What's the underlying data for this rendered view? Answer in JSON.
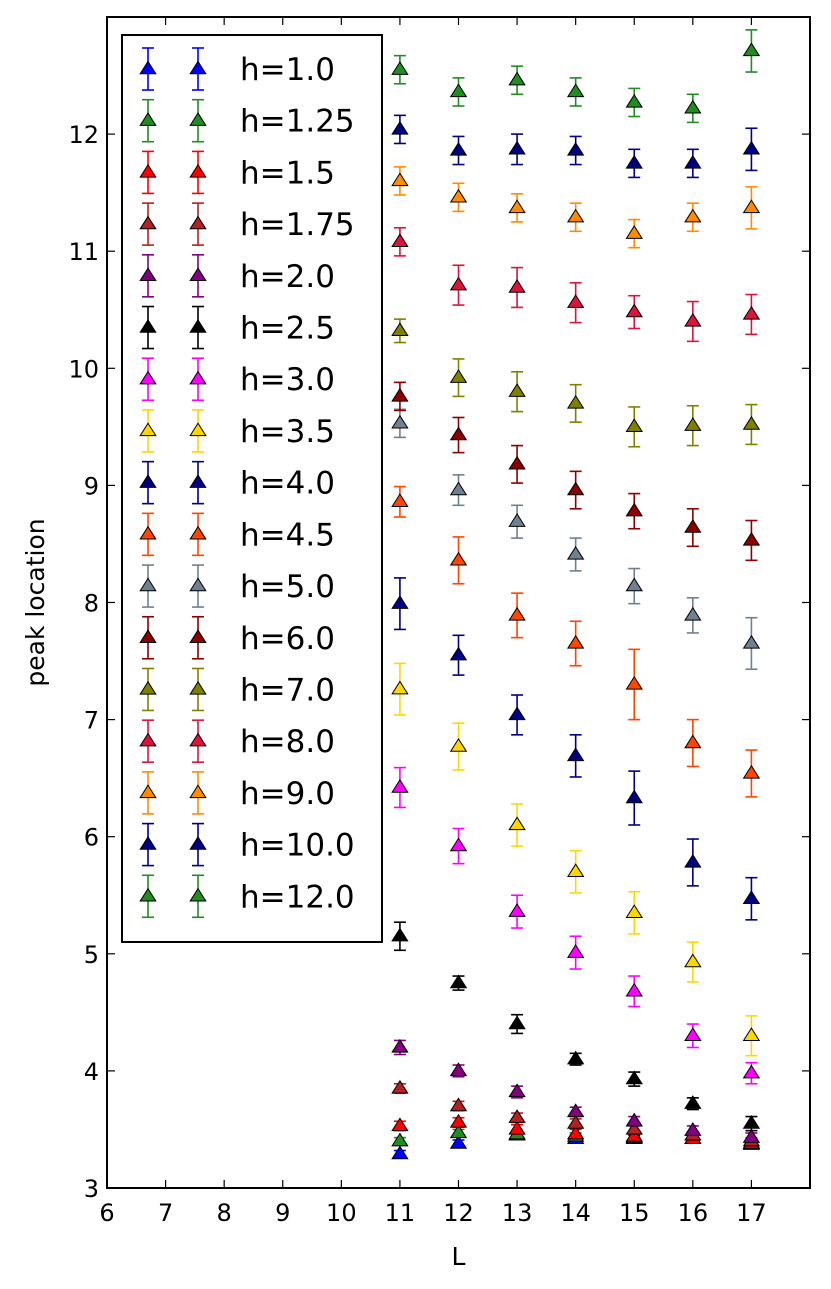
{
  "chart_data": {
    "type": "scatter",
    "xlabel": "L",
    "ylabel": "peak location",
    "xlim": [
      6,
      18
    ],
    "ylim": [
      3,
      13
    ],
    "xticks": [
      6,
      7,
      8,
      9,
      10,
      11,
      12,
      13,
      14,
      15,
      16,
      17
    ],
    "yticks": [
      3,
      4,
      5,
      6,
      7,
      8,
      9,
      10,
      11,
      12
    ],
    "marker": "triangle-up",
    "legend_position": "upper-left",
    "x": [
      11,
      12,
      13,
      14,
      15,
      16,
      17
    ],
    "series": [
      {
        "name": "h=1.0",
        "color": "#0000ff",
        "values": [
          3.29,
          3.38,
          3.45,
          3.42,
          3.42,
          3.42,
          3.37
        ],
        "errors": [
          0.03,
          0.03,
          0.03,
          0.03,
          0.03,
          0.03,
          0.03
        ]
      },
      {
        "name": "h=1.25",
        "color": "#228b22",
        "values": [
          3.4,
          3.47,
          3.46,
          3.44,
          3.43,
          3.42,
          3.38
        ],
        "errors": [
          0.03,
          0.03,
          0.03,
          0.03,
          0.03,
          0.03,
          0.03
        ]
      },
      {
        "name": "h=1.5",
        "color": "#ff0000",
        "values": [
          3.53,
          3.56,
          3.5,
          3.46,
          3.44,
          3.42,
          3.38
        ],
        "errors": [
          0.04,
          0.04,
          0.04,
          0.04,
          0.03,
          0.03,
          0.03
        ]
      },
      {
        "name": "h=1.75",
        "color": "#b22222",
        "values": [
          3.85,
          3.7,
          3.6,
          3.55,
          3.5,
          3.45,
          3.4
        ],
        "errors": [
          0.04,
          0.04,
          0.04,
          0.04,
          0.04,
          0.03,
          0.03
        ]
      },
      {
        "name": "h=2.0",
        "color": "#800080",
        "values": [
          4.2,
          4.0,
          3.82,
          3.65,
          3.57,
          3.49,
          3.43
        ],
        "errors": [
          0.06,
          0.05,
          0.05,
          0.04,
          0.04,
          0.04,
          0.04
        ]
      },
      {
        "name": "h=2.5",
        "color": "#000000",
        "values": [
          5.15,
          4.75,
          4.4,
          4.1,
          3.93,
          3.72,
          3.55
        ],
        "errors": [
          0.12,
          0.06,
          0.08,
          0.05,
          0.06,
          0.05,
          0.06
        ]
      },
      {
        "name": "h=3.0",
        "color": "#ff00ff",
        "values": [
          6.42,
          5.92,
          5.36,
          5.01,
          4.68,
          4.3,
          3.98
        ],
        "errors": [
          0.17,
          0.15,
          0.14,
          0.14,
          0.13,
          0.1,
          0.09
        ]
      },
      {
        "name": "h=3.5",
        "color": "#ffd700",
        "values": [
          7.26,
          6.77,
          6.1,
          5.7,
          5.35,
          4.93,
          4.3
        ],
        "errors": [
          0.22,
          0.2,
          0.18,
          0.18,
          0.18,
          0.17,
          0.17
        ]
      },
      {
        "name": "h=4.0",
        "color": "#000080",
        "values": [
          7.99,
          7.55,
          7.04,
          6.69,
          6.33,
          5.78,
          5.47
        ],
        "errors": [
          0.22,
          0.17,
          0.17,
          0.18,
          0.23,
          0.2,
          0.18
        ]
      },
      {
        "name": "h=4.5",
        "color": "#ff4500",
        "values": [
          8.86,
          8.36,
          7.89,
          7.65,
          7.3,
          6.8,
          6.54
        ],
        "errors": [
          0.13,
          0.2,
          0.19,
          0.19,
          0.3,
          0.2,
          0.2
        ]
      },
      {
        "name": "h=5.0",
        "color": "#708090",
        "values": [
          9.53,
          8.96,
          8.69,
          8.41,
          8.14,
          7.89,
          7.65
        ],
        "errors": [
          0.12,
          0.13,
          0.14,
          0.14,
          0.15,
          0.15,
          0.22
        ]
      },
      {
        "name": "h=6.0",
        "color": "#8b0000",
        "values": [
          9.76,
          9.43,
          9.18,
          8.96,
          8.78,
          8.64,
          8.53
        ],
        "errors": [
          0.12,
          0.15,
          0.16,
          0.16,
          0.15,
          0.16,
          0.17
        ]
      },
      {
        "name": "h=7.0",
        "color": "#808000",
        "values": [
          10.32,
          9.92,
          9.8,
          9.7,
          9.5,
          9.51,
          9.52
        ],
        "errors": [
          0.1,
          0.16,
          0.17,
          0.16,
          0.17,
          0.17,
          0.17
        ]
      },
      {
        "name": "h=8.0",
        "color": "#dc143c",
        "values": [
          11.08,
          10.71,
          10.69,
          10.56,
          10.48,
          10.4,
          10.46
        ],
        "errors": [
          0.12,
          0.17,
          0.17,
          0.17,
          0.14,
          0.17,
          0.17
        ]
      },
      {
        "name": "h=9.0",
        "color": "#ff8c00",
        "values": [
          11.6,
          11.46,
          11.37,
          11.29,
          11.15,
          11.29,
          11.37
        ],
        "errors": [
          0.12,
          0.12,
          0.12,
          0.12,
          0.12,
          0.12,
          0.18
        ]
      },
      {
        "name": "h=10.0",
        "color": "#000080",
        "values": [
          12.04,
          11.86,
          11.87,
          11.86,
          11.75,
          11.75,
          11.87
        ],
        "errors": [
          0.12,
          0.12,
          0.13,
          0.12,
          0.12,
          0.12,
          0.18
        ]
      },
      {
        "name": "h=12.0",
        "color": "#228b22",
        "values": [
          12.55,
          12.36,
          12.46,
          12.36,
          12.27,
          12.22,
          12.71
        ],
        "errors": [
          0.12,
          0.12,
          0.12,
          0.12,
          0.12,
          0.12,
          0.18
        ]
      }
    ]
  }
}
